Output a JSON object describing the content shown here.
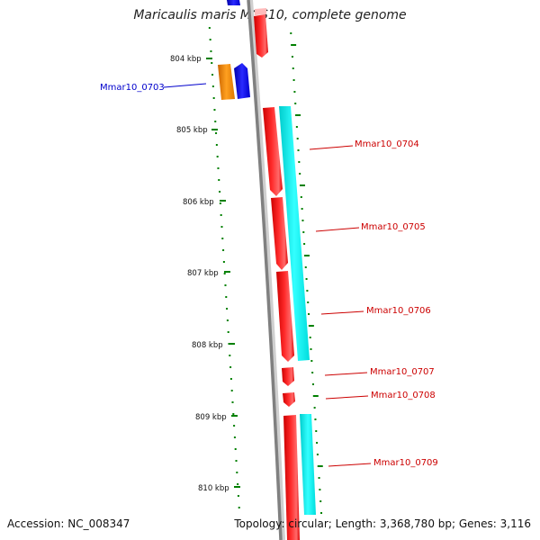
{
  "title": "Maricaulis maris MCS10, complete genome",
  "footer": {
    "accession": "Accession: NC_008347",
    "topology": "Topology: circular; Length: 3,368,780 bp; Genes: 3,116"
  },
  "ruler": {
    "ticks": [
      "804 kbp",
      "805 kbp",
      "806 kbp",
      "807 kbp",
      "808 kbp",
      "809 kbp",
      "810 kbp"
    ]
  },
  "gene_labels": [
    {
      "name": "Mmar10_0703",
      "color": "#0000cc",
      "side": "left"
    },
    {
      "name": "Mmar10_0704",
      "color": "#cc0000",
      "side": "right"
    },
    {
      "name": "Mmar10_0705",
      "color": "#cc0000",
      "side": "right"
    },
    {
      "name": "Mmar10_0706",
      "color": "#cc0000",
      "side": "right"
    },
    {
      "name": "Mmar10_0707",
      "color": "#cc0000",
      "side": "right"
    },
    {
      "name": "Mmar10_0708",
      "color": "#cc0000",
      "side": "right"
    },
    {
      "name": "Mmar10_0709",
      "color": "#cc0000",
      "side": "right"
    }
  ],
  "colors": {
    "forward_cds": "#ff0000",
    "reverse_cds": "#0000ff",
    "forward_other": "#00ffff",
    "reverse_other": "#ff8c00",
    "gc_ticks": "#008000",
    "backbone": "#808080"
  }
}
